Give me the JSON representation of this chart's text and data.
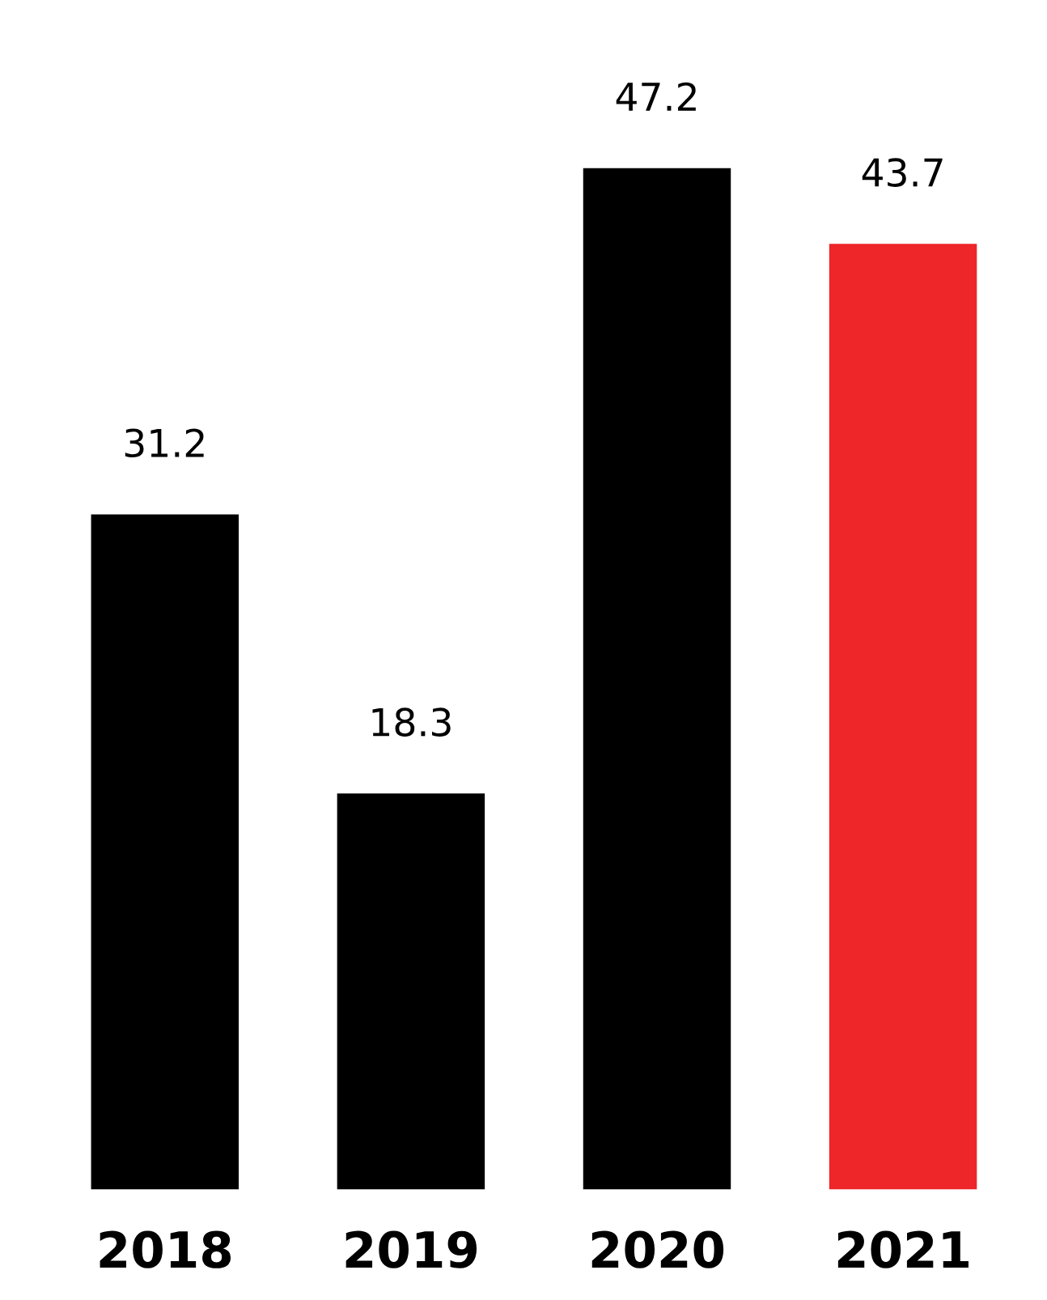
{
  "chart_data": {
    "type": "bar",
    "categories": [
      "2018",
      "2019",
      "2020",
      "2021"
    ],
    "values": [
      31.2,
      18.3,
      47.2,
      43.7
    ],
    "colors": [
      "#000000",
      "#000000",
      "#000000",
      "#ee2529"
    ],
    "data_labels": true,
    "grid": false,
    "legend": false
  }
}
